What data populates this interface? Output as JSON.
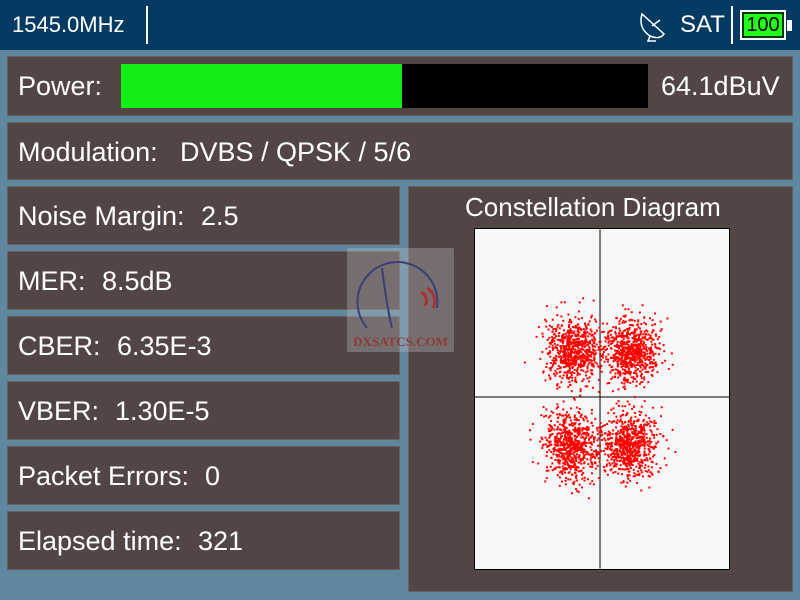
{
  "header": {
    "frequency": "1545.0MHz",
    "mode": "SAT",
    "battery": "100",
    "icons": {
      "dish": "satellite-dish-icon",
      "battery": "battery-icon"
    }
  },
  "power": {
    "label": "Power:",
    "value": "64.1dBuV",
    "level_percent": 53.4,
    "bar_color": "#13ee13"
  },
  "modulation": {
    "label": "Modulation:",
    "value": "DVBS / QPSK / 5/6"
  },
  "metrics": [
    {
      "label": "Noise Margin:",
      "value": "2.5"
    },
    {
      "label": "MER:",
      "value": "8.5dB"
    },
    {
      "label": "CBER:",
      "value": "6.35E-3"
    },
    {
      "label": "VBER:",
      "value": "1.30E-5"
    },
    {
      "label": "Packet Errors:",
      "value": "0"
    },
    {
      "label": "Elapsed time:",
      "value": "321"
    }
  ],
  "constellation": {
    "title": "Constellation Diagram",
    "point_color": "#ff0000",
    "modulation": "QPSK"
  },
  "watermark": {
    "text": "DXSATCS.COM"
  }
}
